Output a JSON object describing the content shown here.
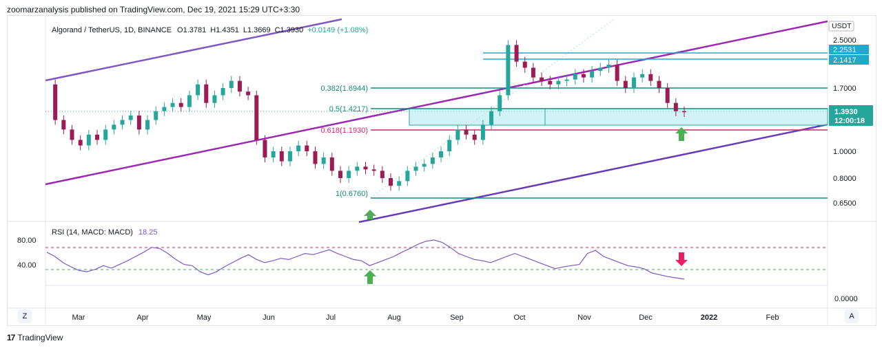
{
  "header": {
    "published_text": "zoomarzanalysis published on TradingView.com, Dec 19, 2021 15:29 UTC+3:30"
  },
  "footer": {
    "brand": "TradingView",
    "logo": "17"
  },
  "controls": {
    "zoom_label": "Z",
    "auto_label": "A"
  },
  "chart_data": {
    "type": "candlestick",
    "symbol_line": "Algorand / TetherUS, 1D, BINANCE",
    "ohlc": {
      "open": "O1.3781",
      "high": "H1.4351",
      "low": "L1.3669",
      "close": "C1.3930",
      "change": "+0.0149 (+1.08%)"
    },
    "currency": "USDT",
    "y_axis_ticks": [
      "2.5000",
      "1.7000",
      "1.0000",
      "0.8000",
      "0.6500"
    ],
    "price_labels": [
      {
        "text": "2.2531",
        "color": "#22a8c9"
      },
      {
        "text": "2.1417",
        "color": "#22a8c9"
      },
      {
        "text": "1.3930",
        "sub": "12:00:18",
        "color": "#26a69a"
      }
    ],
    "fib_levels": [
      {
        "label": "0.382(1.6944)",
        "color": "#138a7c"
      },
      {
        "label": "0.5(1.4217)",
        "color": "#138a7c"
      },
      {
        "label": "0.618(1.1930)",
        "color": "#d6236f"
      },
      {
        "label": "1(0.6760)",
        "color": "#138a7c"
      }
    ],
    "x_axis_labels": [
      "Mar",
      "Apr",
      "May",
      "Jun",
      "Jul",
      "Aug",
      "Sep",
      "Oct",
      "Nov",
      "Dec",
      "2022",
      "Feb"
    ],
    "price_series_approx": [
      1.75,
      1.3,
      1.2,
      1.1,
      1.05,
      1.15,
      1.1,
      1.2,
      1.25,
      1.3,
      1.35,
      1.2,
      1.3,
      1.4,
      1.45,
      1.5,
      1.45,
      1.6,
      1.75,
      1.5,
      1.6,
      1.7,
      1.8,
      1.65,
      1.6,
      1.1,
      0.95,
      1.0,
      0.92,
      1.0,
      1.05,
      1.0,
      0.9,
      0.95,
      0.85,
      0.8,
      0.85,
      0.88,
      0.86,
      0.85,
      0.8,
      0.75,
      0.78,
      0.85,
      0.88,
      0.9,
      0.95,
      1.0,
      1.1,
      1.2,
      1.15,
      1.1,
      1.25,
      1.4,
      1.6,
      2.4,
      2.1,
      2.0,
      1.85,
      1.8,
      1.75,
      1.8,
      1.82,
      1.9,
      1.85,
      1.95,
      2.0,
      2.05,
      1.8,
      1.7,
      1.85,
      1.9,
      1.8,
      1.7,
      1.5,
      1.4,
      1.39
    ],
    "indicator": {
      "name": "RSI (14, MACD: MACD)",
      "value": "18.25",
      "ticks": [
        "80.00",
        "40.00",
        "0.0000"
      ],
      "color": "#7e57c2",
      "rsi_series_approx": [
        62,
        55,
        45,
        38,
        32,
        30,
        34,
        40,
        36,
        42,
        48,
        55,
        62,
        70,
        68,
        60,
        50,
        42,
        40,
        30,
        25,
        30,
        38,
        45,
        52,
        58,
        50,
        45,
        48,
        52,
        50,
        55,
        60,
        58,
        62,
        66,
        60,
        55,
        50,
        48,
        40,
        45,
        50,
        55,
        62,
        68,
        75,
        80,
        82,
        78,
        70,
        60,
        55,
        50,
        48,
        45,
        50,
        55,
        60,
        55,
        50,
        45,
        40,
        35,
        38,
        40,
        42,
        60,
        65,
        55,
        50,
        45,
        40,
        38,
        35,
        28,
        25,
        22,
        20,
        18
      ]
    }
  }
}
